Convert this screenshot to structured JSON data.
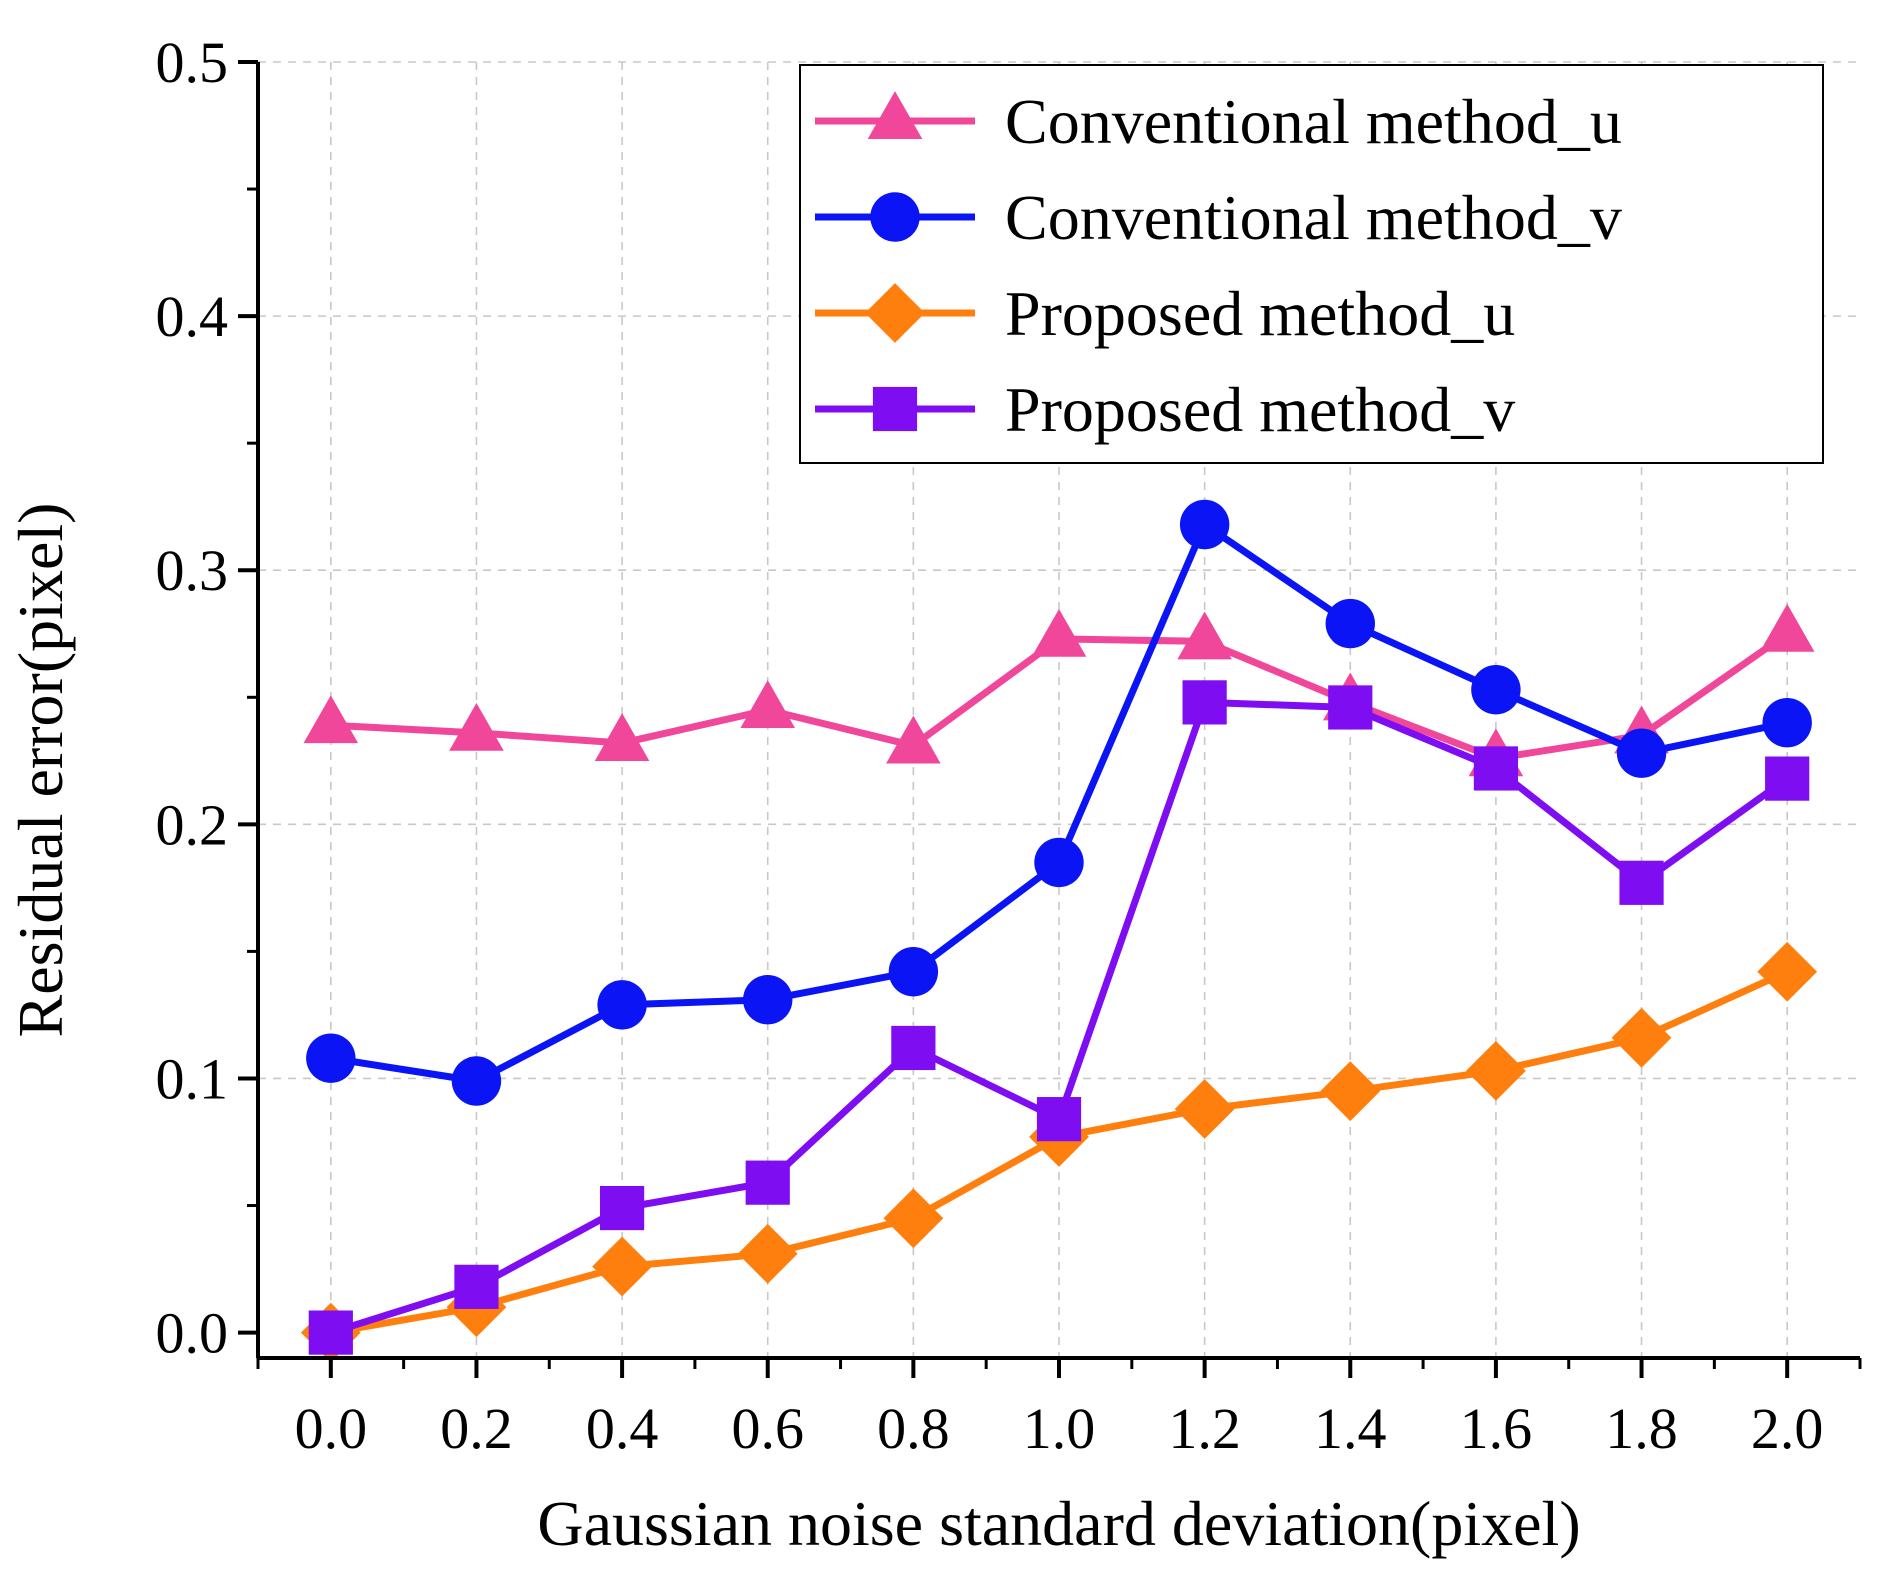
{
  "chart_data": {
    "type": "line",
    "xlabel": "Gaussian noise standard deviation(pixel)",
    "ylabel": "Residual error(pixel)",
    "xlim": [
      -0.1,
      2.1
    ],
    "ylim": [
      -0.01,
      0.5
    ],
    "x": [
      0.0,
      0.2,
      0.4,
      0.6,
      0.8,
      1.0,
      1.2,
      1.4,
      1.6,
      1.8,
      2.0
    ],
    "xticks": [
      "0.0",
      "0.2",
      "0.4",
      "0.6",
      "0.8",
      "1.0",
      "1.2",
      "1.4",
      "1.6",
      "1.8",
      "2.0"
    ],
    "yticks": [
      "0.0",
      "0.1",
      "0.2",
      "0.3",
      "0.4",
      "0.5"
    ],
    "grid": true,
    "legend_position": "top-right",
    "series": [
      {
        "name": "Conventional method_u",
        "color": "#f0479b",
        "marker": "triangle",
        "values": [
          0.239,
          0.236,
          0.232,
          0.245,
          0.231,
          0.273,
          0.272,
          0.248,
          0.226,
          0.235,
          0.275
        ]
      },
      {
        "name": "Conventional method_v",
        "color": "#0a14f5",
        "marker": "circle",
        "values": [
          0.108,
          0.099,
          0.129,
          0.131,
          0.142,
          0.185,
          0.318,
          0.279,
          0.253,
          0.228,
          0.24
        ]
      },
      {
        "name": "Proposed method_u",
        "color": "#ff7f0e",
        "marker": "diamond",
        "values": [
          0.0,
          0.01,
          0.026,
          0.031,
          0.045,
          0.077,
          0.088,
          0.095,
          0.103,
          0.116,
          0.142
        ]
      },
      {
        "name": "Proposed method_v",
        "color": "#7f0df2",
        "marker": "square",
        "values": [
          0.0,
          0.018,
          0.049,
          0.059,
          0.112,
          0.084,
          0.248,
          0.246,
          0.222,
          0.177,
          0.218
        ]
      }
    ]
  }
}
